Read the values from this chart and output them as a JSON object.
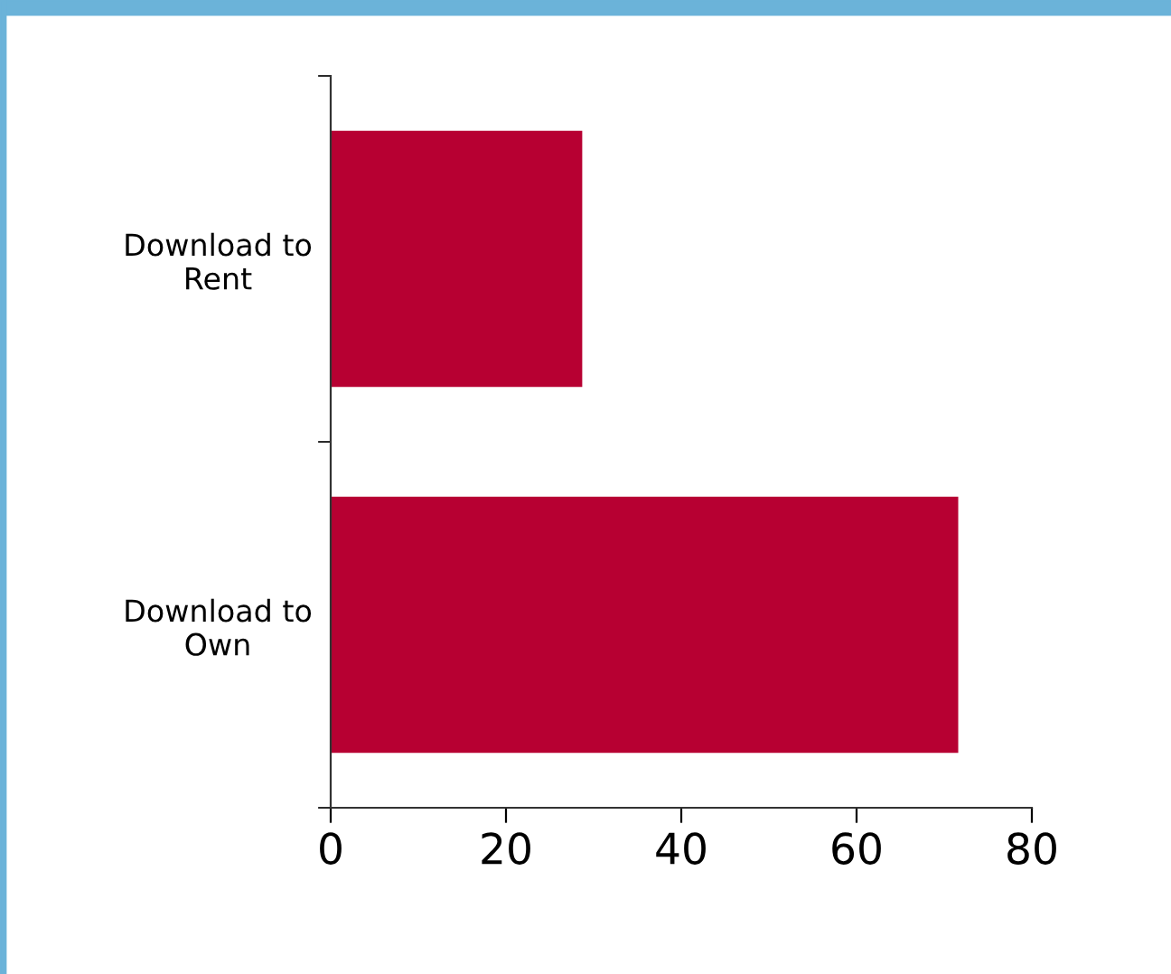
{
  "chart_data": {
    "type": "bar",
    "orientation": "horizontal",
    "categories": [
      "Download to\nRent",
      "Download to\nOwn"
    ],
    "values": [
      28.7,
      71.6
    ],
    "color": "#b70032",
    "xlim": [
      0,
      80
    ],
    "xticks": [
      0,
      20,
      40,
      60,
      80
    ],
    "grid": false
  }
}
